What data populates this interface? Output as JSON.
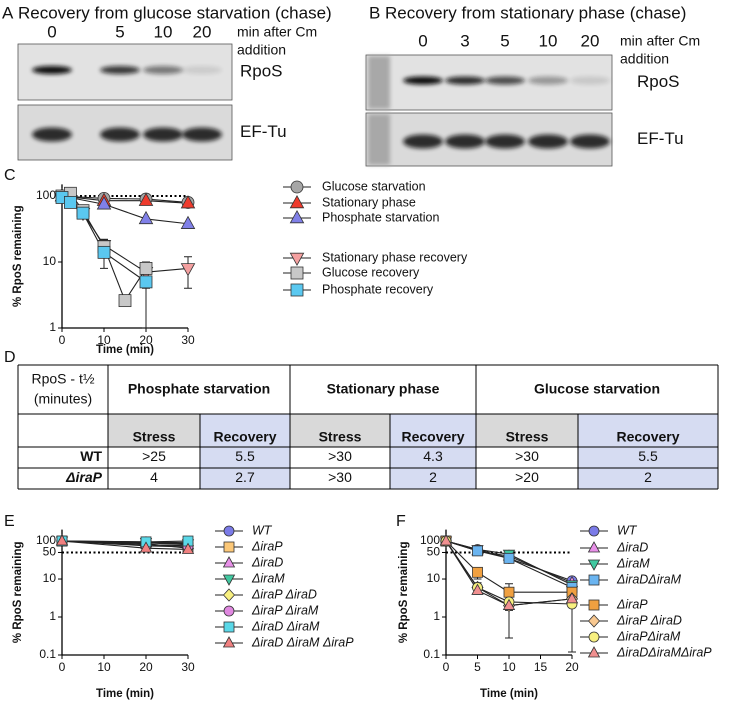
{
  "panel_a": {
    "label": "A",
    "title": "Recovery from glucose starvation (chase)",
    "times": [
      "0",
      "5",
      "10",
      "20"
    ],
    "time_caption": [
      "min after Cm",
      "addition"
    ],
    "bands": [
      "RpoS",
      "EF-Tu"
    ]
  },
  "panel_b": {
    "label": "B",
    "title": "Recovery from stationary phase (chase)",
    "times": [
      "0",
      "3",
      "5",
      "10",
      "20"
    ],
    "time_caption": [
      "min after Cm",
      "addition"
    ],
    "bands": [
      "RpoS",
      "EF-Tu"
    ]
  },
  "panel_d": {
    "label": "D",
    "corner": [
      "RpoS - t½",
      "(minutes)"
    ],
    "groups": [
      "Phosphate starvation",
      "Stationary phase",
      "Glucose starvation"
    ],
    "subheaders": [
      "Stress",
      "Recovery"
    ],
    "rows": [
      {
        "name": "WT",
        "cells": [
          ">25",
          "5.5",
          ">30",
          "4.3",
          ">30",
          "5.5"
        ]
      },
      {
        "name": "ΔiraP",
        "cells": [
          "4",
          "2.7",
          ">30",
          "2",
          ">20",
          "2"
        ]
      }
    ]
  },
  "chart_data": [
    {
      "label": "C",
      "type": "line",
      "ylabel": "% RpoS remaining",
      "xlabel": "Time (min)",
      "log_y": true,
      "line_color": "#222222",
      "xlim": [
        0,
        30
      ],
      "ylim": [
        1,
        150
      ],
      "xticks": [
        0,
        10,
        20,
        30
      ],
      "yticks": [
        1,
        10,
        100
      ],
      "reference_line": 100,
      "series": [
        {
          "name": "Glucose starvation",
          "color": "#a6a6a6",
          "marker": "circle",
          "x": [
            0,
            10,
            20,
            30
          ],
          "values": [
            100,
            92,
            90,
            80
          ]
        },
        {
          "name": "Stationary phase",
          "color": "#ee3a2c",
          "marker": "triangle-up",
          "x": [
            0,
            10,
            20,
            30
          ],
          "values": [
            100,
            85,
            85,
            78
          ]
        },
        {
          "name": "Phosphate starvation",
          "color": "#8080e8",
          "marker": "triangle-up",
          "x": [
            0,
            10,
            20,
            30
          ],
          "values": [
            100,
            75,
            45,
            38
          ]
        },
        {
          "name": "Stationary phase recovery",
          "color": "#f4a0a0",
          "marker": "triangle-down",
          "x": [
            0,
            2,
            5,
            10,
            20,
            30
          ],
          "values": [
            100,
            85,
            55,
            18,
            7,
            8
          ],
          "errors": [
            null,
            null,
            null,
            4,
            3,
            4
          ]
        },
        {
          "name": "Glucose recovery",
          "color": "#c8c8c8",
          "marker": "square",
          "x": [
            0,
            2,
            5,
            10,
            15,
            20
          ],
          "values": [
            100,
            110,
            60,
            17,
            2.6,
            8
          ],
          "errors": [
            null,
            null,
            null,
            5,
            null,
            2
          ]
        },
        {
          "name": "Phosphate recovery",
          "color": "#5ac8f0",
          "marker": "square",
          "x": [
            0,
            2,
            5,
            10,
            20
          ],
          "values": [
            95,
            80,
            55,
            14,
            5
          ],
          "errors": [
            null,
            null,
            null,
            6,
            4
          ]
        }
      ]
    },
    {
      "label": "E",
      "type": "line",
      "ylabel": "% RpoS remaining",
      "xlabel": "Time (min)",
      "log_y": true,
      "line_color": "#222222",
      "xlim": [
        0,
        30
      ],
      "ylim": [
        0.1,
        200
      ],
      "xticks": [
        0,
        10,
        20,
        30
      ],
      "yticks": [
        0.1,
        1,
        10,
        50,
        100
      ],
      "reference_line": 50,
      "series": [
        {
          "name": "WT",
          "color": "#7b7be8",
          "marker": "circle",
          "x": [
            0,
            20,
            30
          ],
          "values": [
            100,
            95,
            90
          ]
        },
        {
          "name": "ΔiraP",
          "color": "#fcc878",
          "marker": "square",
          "x": [
            0,
            20,
            30
          ],
          "values": [
            100,
            85,
            65
          ]
        },
        {
          "name": "ΔiraD",
          "color": "#e890e8",
          "marker": "triangle-up",
          "x": [
            0,
            20,
            30
          ],
          "values": [
            100,
            90,
            80
          ]
        },
        {
          "name": "ΔiraM",
          "color": "#40c8a0",
          "marker": "triangle-down",
          "x": [
            0,
            20,
            30
          ],
          "values": [
            100,
            92,
            85
          ]
        },
        {
          "name": "ΔiraP ΔiraD",
          "color": "#f8f080",
          "marker": "diamond",
          "x": [
            0,
            20,
            30
          ],
          "values": [
            100,
            80,
            75
          ]
        },
        {
          "name": "ΔiraP ΔiraM",
          "color": "#e088e0",
          "marker": "circle",
          "x": [
            0,
            20,
            30
          ],
          "values": [
            100,
            75,
            70
          ]
        },
        {
          "name": "ΔiraD ΔiraM",
          "color": "#5ad8e8",
          "marker": "square",
          "x": [
            0,
            20,
            30
          ],
          "values": [
            100,
            95,
            100
          ]
        },
        {
          "name": "ΔiraD ΔiraM ΔiraP",
          "color": "#f08080",
          "marker": "triangle-up",
          "x": [
            0,
            20,
            30
          ],
          "values": [
            100,
            65,
            60
          ]
        }
      ]
    },
    {
      "label": "F",
      "type": "line",
      "ylabel": "% RpoS remaining",
      "xlabel": "Time (min)",
      "log_y": true,
      "line_color": "#222222",
      "xlim": [
        0,
        20
      ],
      "ylim": [
        0.1,
        200
      ],
      "xticks": [
        0,
        5,
        10,
        15,
        20
      ],
      "yticks": [
        0.1,
        1,
        10,
        50,
        100
      ],
      "reference_line": 50,
      "series": [
        {
          "name": "WT",
          "color": "#7b7be8",
          "marker": "circle",
          "x": [
            0,
            5,
            10,
            20
          ],
          "values": [
            100,
            60,
            35,
            9
          ]
        },
        {
          "name": "ΔiraD",
          "color": "#e890e8",
          "marker": "triangle-up",
          "x": [
            0,
            5,
            10,
            20
          ],
          "values": [
            100,
            55,
            40,
            8
          ]
        },
        {
          "name": "ΔiraM",
          "color": "#40c8a0",
          "marker": "triangle-down",
          "x": [
            0,
            5,
            10,
            20
          ],
          "values": [
            100,
            60,
            45,
            7
          ]
        },
        {
          "name": "ΔiraDΔiraM",
          "color": "#6ab4f0",
          "marker": "square",
          "x": [
            0,
            5,
            10,
            20
          ],
          "values": [
            100,
            55,
            35,
            6
          ]
        },
        {
          "name": "ΔiraP",
          "color": "#f0a040",
          "marker": "square",
          "x": [
            0,
            5,
            10,
            20
          ],
          "values": [
            100,
            15,
            4.5,
            4.5
          ],
          "errors": [
            null,
            5,
            3,
            null
          ]
        },
        {
          "name": "ΔiraP ΔiraD",
          "color": "#f8c890",
          "marker": "diamond",
          "x": [
            0,
            5,
            10,
            20
          ],
          "values": [
            100,
            6,
            2,
            3
          ],
          "errors": [
            null,
            2,
            1.72,
            null
          ]
        },
        {
          "name": "ΔiraPΔiraM",
          "color": "#f8f080",
          "marker": "circle",
          "x": [
            0,
            5,
            10,
            20
          ],
          "values": [
            100,
            6,
            2.5,
            2.2
          ],
          "errors": [
            null,
            null,
            null,
            2.08
          ]
        },
        {
          "name": "ΔiraDΔiraMΔiraP",
          "color": "#f09090",
          "marker": "triangle-up",
          "x": [
            0,
            5,
            10,
            20
          ],
          "values": [
            100,
            5,
            2,
            3
          ]
        }
      ]
    }
  ]
}
